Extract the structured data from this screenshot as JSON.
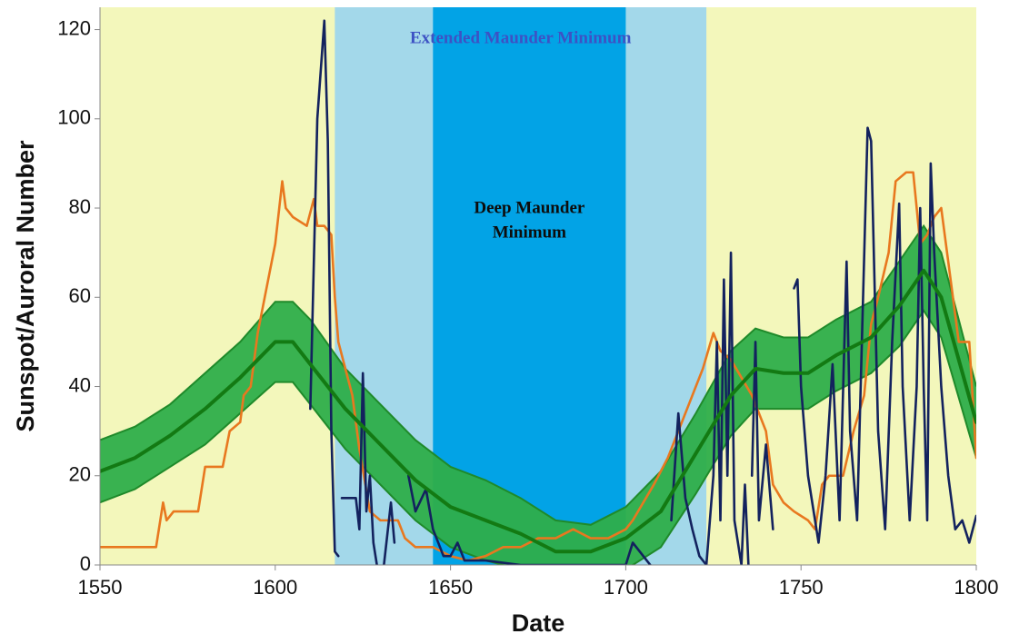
{
  "chart_data": {
    "type": "line",
    "x_label": "Date",
    "y_label": "Sunspot/Auroral Number",
    "xlim": [
      1550,
      1800
    ],
    "ylim": [
      0,
      125
    ],
    "xticks": [
      1550,
      1600,
      1650,
      1700,
      1750,
      1800
    ],
    "yticks": [
      0,
      20,
      40,
      60,
      80,
      100,
      120
    ],
    "background": "#f3f7bb",
    "regions": [
      {
        "label": [
          "Extended Maunder Minimum"
        ],
        "start": 1617,
        "end": 1723,
        "color": "#a3d8ea",
        "label_color": "#3d52c4"
      },
      {
        "label": [
          "Deep Maunder",
          "Minimum"
        ],
        "start": 1645,
        "end": 1700,
        "color": "#02a3e6",
        "label_color": "#0d0d0d"
      }
    ],
    "band": {
      "x": [
        1550,
        1560,
        1570,
        1580,
        1590,
        1600,
        1605,
        1610,
        1620,
        1630,
        1640,
        1650,
        1660,
        1670,
        1680,
        1690,
        1700,
        1710,
        1720,
        1730,
        1737,
        1745,
        1752,
        1760,
        1770,
        1778,
        1785,
        1790,
        1800
      ],
      "upper": [
        28,
        31,
        36,
        43,
        50,
        59,
        59,
        55,
        44,
        36,
        28,
        22,
        19,
        15,
        10,
        9,
        13,
        21,
        34,
        48,
        53,
        51,
        51,
        55,
        59,
        68,
        76,
        70,
        40
      ],
      "lower": [
        14,
        17,
        22,
        27,
        34,
        41,
        41,
        36,
        26,
        18,
        10,
        4,
        1,
        -1,
        -4,
        -3,
        -1,
        4,
        16,
        29,
        35,
        35,
        35,
        39,
        43,
        49,
        57,
        51,
        24
      ],
      "color": "#2eae4a",
      "edge_color": "#1f8a2a"
    },
    "series": [
      {
        "color": "#e8781f",
        "x": [
          1550,
          1566,
          1568,
          1569,
          1571,
          1578,
          1580,
          1585,
          1587,
          1590,
          1591,
          1593,
          1595,
          1597,
          1600,
          1602,
          1603,
          1605,
          1609,
          1611,
          1612,
          1614,
          1616,
          1617,
          1618,
          1620,
          1622,
          1624,
          1627,
          1630,
          1635,
          1637,
          1640,
          1645,
          1650,
          1655,
          1660,
          1665,
          1670,
          1675,
          1680,
          1685,
          1690,
          1695,
          1700,
          1702,
          1705,
          1708,
          1712,
          1715,
          1718,
          1722,
          1725,
          1727,
          1730,
          1733,
          1736,
          1740,
          1742,
          1745,
          1748,
          1752,
          1754,
          1756,
          1758,
          1762,
          1765,
          1768,
          1770,
          1772,
          1775,
          1777,
          1780,
          1782,
          1784,
          1786,
          1788,
          1790,
          1792,
          1795,
          1798,
          1800
        ],
        "values": [
          4,
          4,
          14,
          10,
          12,
          12,
          22,
          22,
          30,
          32,
          38,
          40,
          52,
          60,
          72,
          86,
          80,
          78,
          76,
          82,
          76,
          76,
          74,
          60,
          50,
          44,
          38,
          26,
          12,
          10,
          10,
          6,
          4,
          4,
          2,
          1,
          2,
          4,
          4,
          6,
          6,
          8,
          6,
          6,
          8,
          10,
          14,
          18,
          24,
          30,
          36,
          44,
          52,
          48,
          46,
          42,
          38,
          30,
          18,
          14,
          12,
          10,
          8,
          18,
          20,
          20,
          30,
          38,
          54,
          60,
          70,
          86,
          88,
          88,
          72,
          74,
          78,
          80,
          68,
          50,
          50,
          24
        ]
      },
      {
        "color": "#13225e",
        "x": [
          1610,
          1612,
          1614,
          1615,
          1616,
          1617,
          1618,
          1618.5,
          1619,
          1623,
          1624,
          1625,
          1626,
          1627,
          1628,
          1629,
          1630,
          1631,
          1633,
          1634,
          1636,
          1638,
          1640,
          1643,
          1645,
          1648,
          1650,
          1652,
          1654,
          1660,
          1670,
          1680,
          1690,
          1700,
          1702,
          1705,
          1707,
          1710,
          1713,
          1715,
          1717,
          1719,
          1721,
          1723,
          1725,
          1726,
          1727,
          1728,
          1729,
          1730,
          1731,
          1733,
          1734,
          1735,
          1735.5,
          1736,
          1737,
          1738,
          1740,
          1742,
          1745,
          1748,
          1749,
          1750,
          1752,
          1755,
          1757,
          1759,
          1761,
          1763,
          1764,
          1766,
          1769,
          1770,
          1772,
          1774,
          1776,
          1778,
          1779,
          1781,
          1783,
          1784,
          1785,
          1786,
          1787,
          1788,
          1790,
          1792,
          1794,
          1796,
          1798,
          1800
        ],
        "values": [
          35,
          100,
          122,
          95,
          30,
          3,
          2,
          null,
          15,
          15,
          8,
          43,
          12,
          20,
          5,
          0,
          null,
          0,
          14,
          5,
          null,
          20,
          12,
          17,
          8,
          2,
          2,
          5,
          1,
          1,
          0,
          0,
          0,
          0,
          5,
          2,
          0,
          null,
          10,
          34,
          15,
          8,
          2,
          0,
          20,
          50,
          10,
          64,
          20,
          70,
          10,
          0,
          18,
          0,
          null,
          20,
          50,
          10,
          27,
          8,
          null,
          62,
          64,
          40,
          20,
          5,
          20,
          45,
          10,
          68,
          30,
          10,
          98,
          95,
          30,
          8,
          50,
          81,
          40,
          10,
          40,
          80,
          40,
          10,
          90,
          70,
          40,
          20,
          8,
          10,
          5,
          11
        ]
      },
      {
        "color": "#137a13",
        "x": [
          1550,
          1560,
          1570,
          1580,
          1590,
          1600,
          1605,
          1610,
          1620,
          1630,
          1640,
          1650,
          1660,
          1670,
          1680,
          1690,
          1700,
          1710,
          1720,
          1730,
          1737,
          1745,
          1752,
          1760,
          1770,
          1778,
          1785,
          1790,
          1800
        ],
        "values": [
          21,
          24,
          29,
          35,
          42,
          50,
          50,
          45,
          35,
          27,
          19,
          13,
          10,
          7,
          3,
          3,
          6,
          12,
          25,
          38,
          44,
          43,
          43,
          47,
          51,
          58,
          66,
          60,
          32
        ]
      }
    ]
  }
}
